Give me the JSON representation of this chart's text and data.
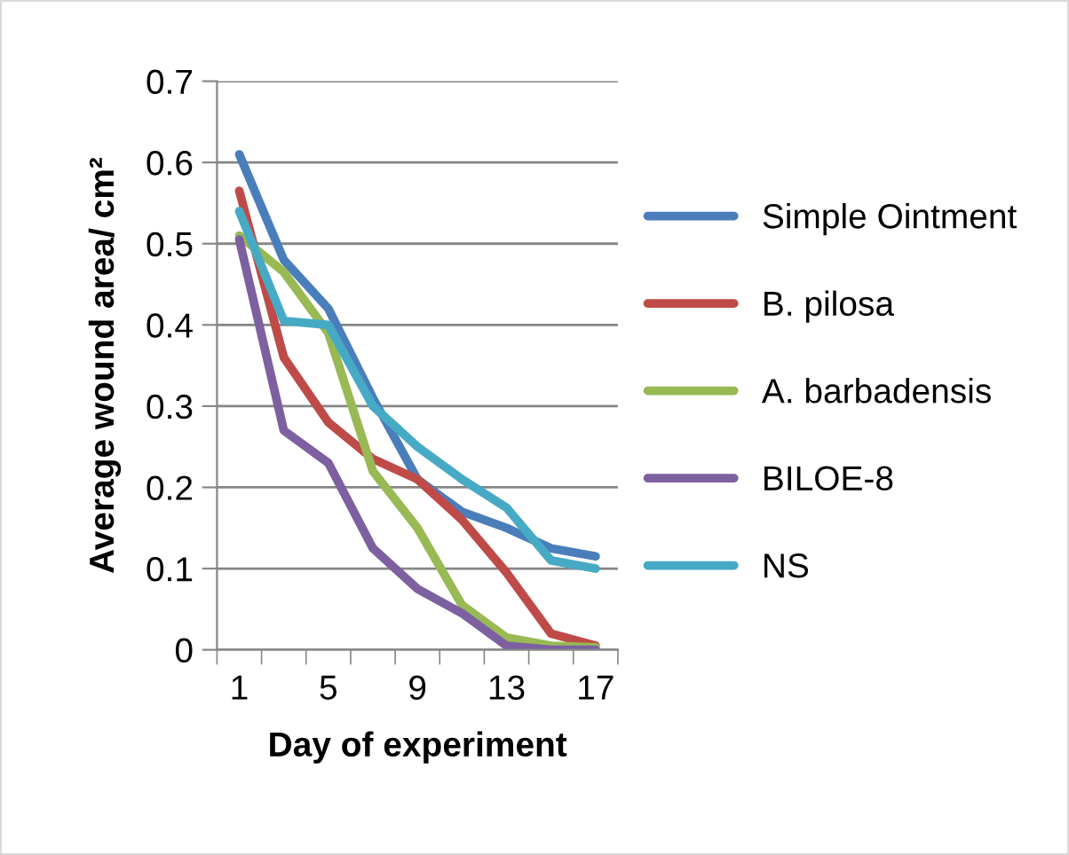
{
  "chart_data": {
    "type": "line",
    "xlabel": "Day of experiment",
    "ylabel": "Average wound area/ cm²",
    "categories": [
      "1",
      null,
      "5",
      null,
      "9",
      null,
      "13",
      null,
      "17"
    ],
    "series": [
      {
        "name": "Simple Ointment",
        "color": "#4a7ebb",
        "values": [
          0.61,
          0.48,
          0.42,
          0.31,
          0.21,
          0.17,
          0.15,
          0.125,
          0.115
        ]
      },
      {
        "name": "B. pilosa",
        "color": "#be4b48",
        "values": [
          0.565,
          0.36,
          0.28,
          0.235,
          0.21,
          0.16,
          0.095,
          0.02,
          0.005
        ]
      },
      {
        "name": "A. barbadensis",
        "color": "#98b954",
        "values": [
          0.51,
          0.465,
          0.39,
          0.22,
          0.15,
          0.055,
          0.015,
          0.005,
          0.003
        ]
      },
      {
        "name": "BILOE-8",
        "color": "#7d60a0",
        "values": [
          0.505,
          0.27,
          0.23,
          0.125,
          0.075,
          0.045,
          0.005,
          0,
          0
        ]
      },
      {
        "name": "NS",
        "color": "#46aac5",
        "values": [
          0.54,
          0.405,
          0.4,
          0.3,
          0.25,
          0.21,
          0.175,
          0.11,
          0.1
        ]
      }
    ],
    "ylim": [
      0,
      0.7
    ],
    "yticks": [
      0,
      0.1,
      0.2,
      0.3,
      0.4,
      0.5,
      0.6,
      0.7
    ],
    "grid": "y",
    "legend": "right",
    "marker": "none",
    "line_style": "solid"
  }
}
